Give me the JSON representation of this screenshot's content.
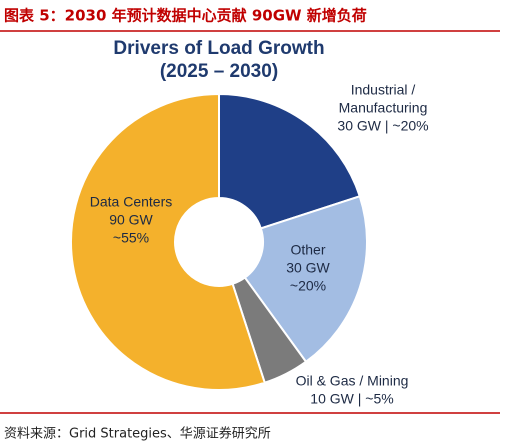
{
  "header": {
    "title": "图表 5：2030 年预计数据中心贡献 90GW 新增负荷"
  },
  "chart_data": {
    "type": "pie",
    "title": "Drivers of Load Growth",
    "subtitle": "(2025 – 2030)",
    "categories": [
      [
        "Industrial /",
        "Manufacturing"
      ],
      [
        "Other"
      ],
      [
        "Oil & Gas / Mining"
      ],
      [
        "Data Centers"
      ]
    ],
    "values": [
      20,
      20,
      5,
      55
    ],
    "value_labels": [
      [
        "30 GW | ~20%"
      ],
      [
        "30 GW",
        "~20%"
      ],
      [
        "10 GW | ~5%"
      ],
      [
        "90 GW",
        "~55%"
      ]
    ],
    "colors": [
      "#1f3f87",
      "#a3bde3",
      "#7b7b7b",
      "#f4b12c"
    ]
  },
  "footer": {
    "source": "资料来源：Grid Strategies、华源证券研究所"
  }
}
